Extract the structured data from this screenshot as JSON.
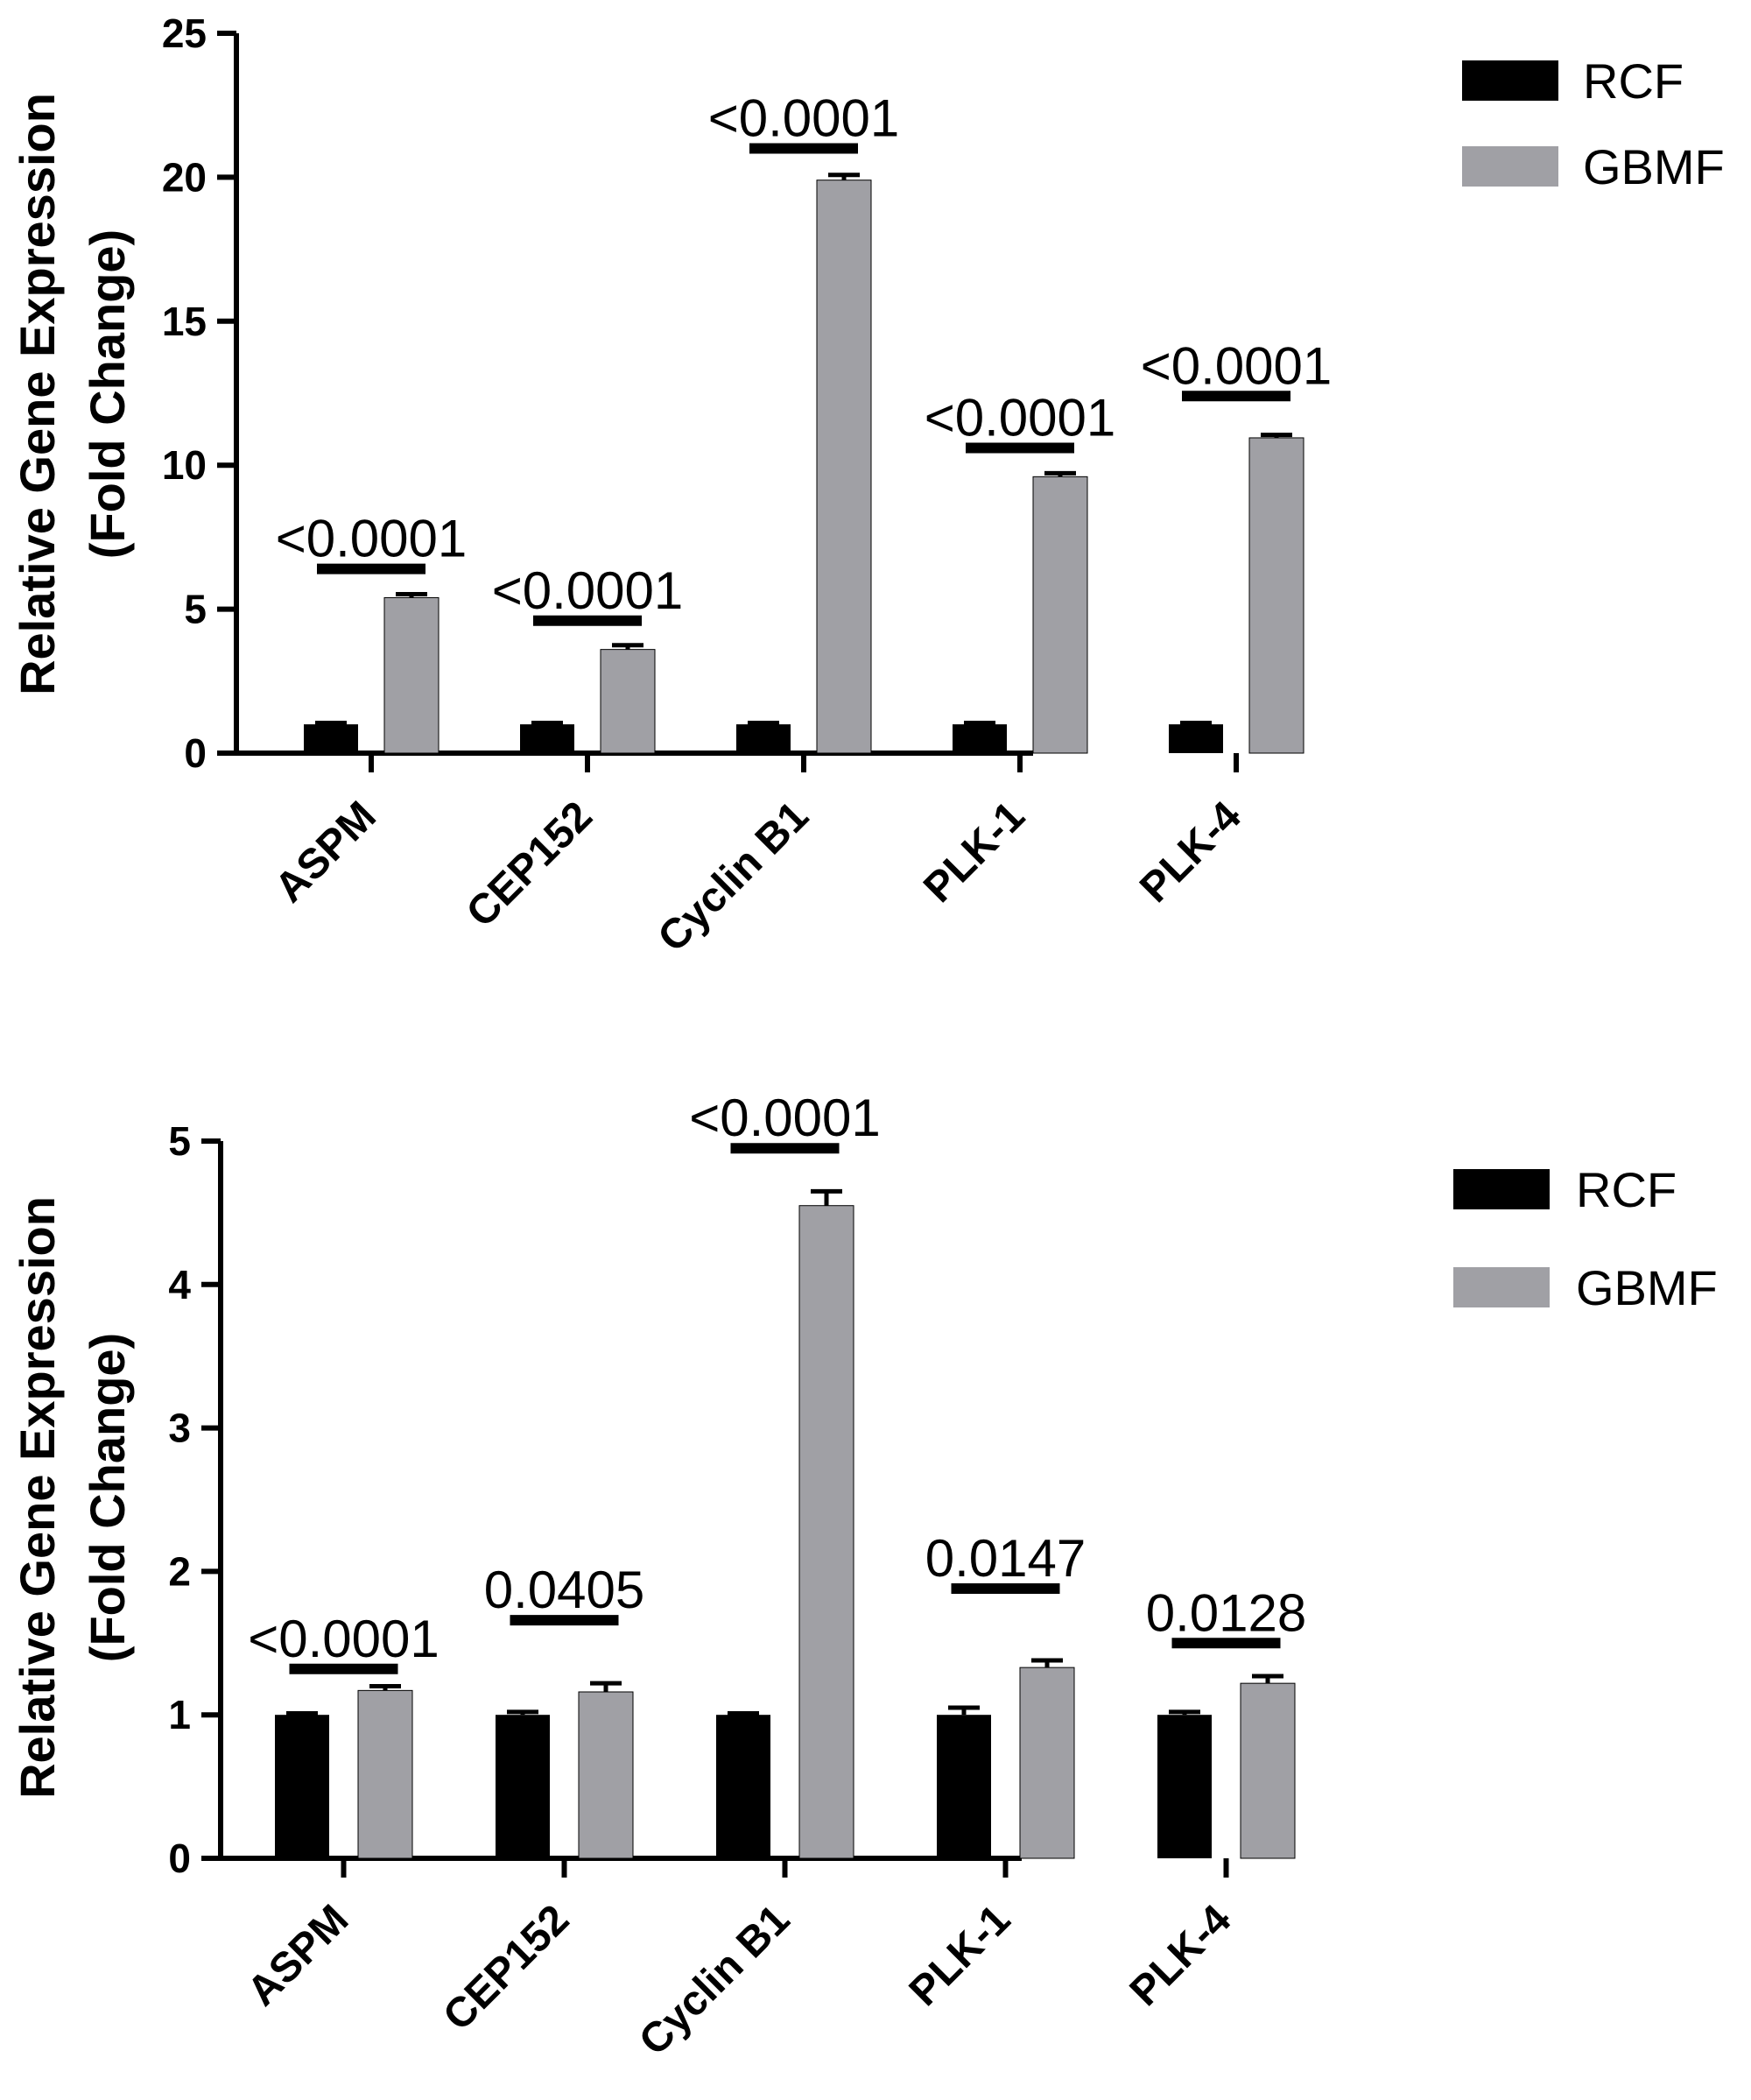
{
  "colors": {
    "rcf": "#000000",
    "gbmf": "#a0a0a5",
    "axis": "#000000"
  },
  "chart_data": [
    {
      "type": "bar",
      "title": "",
      "ylabel_lines": [
        "Relative  Gene  Expression",
        "(Fold Change)"
      ],
      "xlabel": "",
      "categories": [
        "ASPM",
        "CEP152",
        "Cyclin B1",
        "PLK-1",
        "PLK-4"
      ],
      "ylim": [
        0,
        25
      ],
      "yticks": [
        0,
        5,
        10,
        15,
        20,
        25
      ],
      "legend": {
        "placement": "top-right",
        "entries": [
          "RCF",
          "GBMF"
        ]
      },
      "grid": false,
      "series": [
        {
          "name": "RCF",
          "values": [
            1.0,
            1.0,
            1.0,
            1.0,
            1.0
          ],
          "errors": [
            0.05,
            0.05,
            0.05,
            0.05,
            0.05
          ]
        },
        {
          "name": "GBMF",
          "values": [
            5.4,
            3.6,
            19.9,
            9.6,
            10.95
          ],
          "errors": [
            0.12,
            0.15,
            0.18,
            0.12,
            0.1
          ]
        }
      ],
      "pvalues": [
        "<0.0001",
        "<0.0001",
        "<0.0001",
        "<0.0001",
        "<0.0001"
      ],
      "bracket_y": [
        6.4,
        4.6,
        21.0,
        10.6,
        12.4
      ]
    },
    {
      "type": "bar",
      "title": "",
      "ylabel_lines": [
        "Relative  Gene  Expression",
        "(Fold Change)"
      ],
      "xlabel": "",
      "categories": [
        "ASPM",
        "CEP152",
        "Cyclin B1",
        "PLK-1",
        "PLK-4"
      ],
      "ylim": [
        0,
        5
      ],
      "yticks": [
        0,
        1,
        2,
        3,
        4,
        5
      ],
      "legend": {
        "placement": "top-right",
        "entries": [
          "RCF",
          "GBMF"
        ]
      },
      "grid": false,
      "series": [
        {
          "name": "RCF",
          "values": [
            1.0,
            1.0,
            1.0,
            1.0,
            1.0
          ],
          "errors": [
            0.01,
            0.02,
            0.01,
            0.05,
            0.02
          ]
        },
        {
          "name": "GBMF",
          "values": [
            1.17,
            1.16,
            4.55,
            1.33,
            1.22
          ],
          "errors": [
            0.03,
            0.06,
            0.1,
            0.05,
            0.05
          ]
        }
      ],
      "pvalues": [
        "<0.0001",
        "0.0405",
        "<0.0001",
        "0.0147",
        "0.0128"
      ],
      "bracket_y": [
        1.32,
        1.66,
        4.95,
        1.88,
        1.5
      ]
    }
  ]
}
